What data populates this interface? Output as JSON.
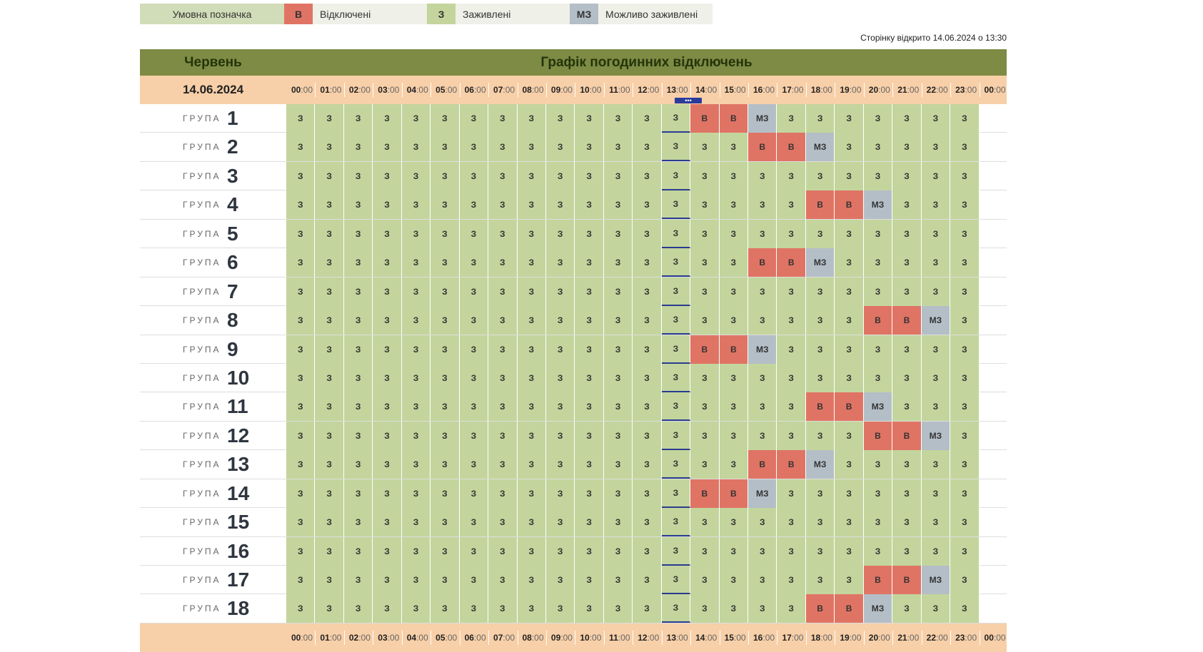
{
  "legend": {
    "title": "Умовна позначка",
    "items": [
      {
        "code": "В",
        "label": "Відключені",
        "color": "#e07464"
      },
      {
        "code": "З",
        "label": "Заживлені",
        "color": "#c3d59c"
      },
      {
        "code": "МЗ",
        "label": "Можливо заживлені",
        "color": "#b4bec7"
      }
    ]
  },
  "opened_text": "Сторінку відкрито 14.06.2024 о 13:30",
  "header": {
    "month": "Червень",
    "title": "Графік погодинних відключень",
    "date": "14.06.2024"
  },
  "hours": [
    {
      "hh": "00",
      "mm": ":00"
    },
    {
      "hh": "01",
      "mm": ":00"
    },
    {
      "hh": "02",
      "mm": ":00"
    },
    {
      "hh": "03",
      "mm": ":00"
    },
    {
      "hh": "04",
      "mm": ":00"
    },
    {
      "hh": "05",
      "mm": ":00"
    },
    {
      "hh": "06",
      "mm": ":00"
    },
    {
      "hh": "07",
      "mm": ":00"
    },
    {
      "hh": "08",
      "mm": ":00"
    },
    {
      "hh": "09",
      "mm": ":00"
    },
    {
      "hh": "10",
      "mm": ":00"
    },
    {
      "hh": "11",
      "mm": ":00"
    },
    {
      "hh": "12",
      "mm": ":00"
    },
    {
      "hh": "13",
      "mm": ":00"
    },
    {
      "hh": "14",
      "mm": ":00"
    },
    {
      "hh": "15",
      "mm": ":00"
    },
    {
      "hh": "16",
      "mm": ":00"
    },
    {
      "hh": "17",
      "mm": ":00"
    },
    {
      "hh": "18",
      "mm": ":00"
    },
    {
      "hh": "19",
      "mm": ":00"
    },
    {
      "hh": "20",
      "mm": ":00"
    },
    {
      "hh": "21",
      "mm": ":00"
    },
    {
      "hh": "22",
      "mm": ":00"
    },
    {
      "hh": "23",
      "mm": ":00"
    },
    {
      "hh": "00",
      "mm": ":00"
    }
  ],
  "current_hour_index": 13,
  "now_marker": "•••",
  "group_word": "ГРУПА",
  "codes": {
    "off": "В",
    "on": "З",
    "maybe": "МЗ"
  },
  "groups": [
    {
      "number": "1",
      "off": [
        14,
        15
      ],
      "maybe": [
        16
      ]
    },
    {
      "number": "2",
      "off": [
        16,
        17
      ],
      "maybe": [
        18
      ]
    },
    {
      "number": "3",
      "off": [],
      "maybe": []
    },
    {
      "number": "4",
      "off": [
        18,
        19
      ],
      "maybe": [
        20
      ]
    },
    {
      "number": "5",
      "off": [],
      "maybe": []
    },
    {
      "number": "6",
      "off": [
        16,
        17
      ],
      "maybe": [
        18
      ]
    },
    {
      "number": "7",
      "off": [],
      "maybe": []
    },
    {
      "number": "8",
      "off": [
        20,
        21
      ],
      "maybe": [
        22
      ]
    },
    {
      "number": "9",
      "off": [
        14,
        15
      ],
      "maybe": [
        16
      ]
    },
    {
      "number": "10",
      "off": [],
      "maybe": []
    },
    {
      "number": "11",
      "off": [
        18,
        19
      ],
      "maybe": [
        20
      ]
    },
    {
      "number": "12",
      "off": [
        20,
        21
      ],
      "maybe": [
        22
      ]
    },
    {
      "number": "13",
      "off": [
        16,
        17
      ],
      "maybe": [
        18
      ]
    },
    {
      "number": "14",
      "off": [
        14,
        15
      ],
      "maybe": [
        16
      ]
    },
    {
      "number": "15",
      "off": [],
      "maybe": []
    },
    {
      "number": "16",
      "off": [],
      "maybe": []
    },
    {
      "number": "17",
      "off": [
        20,
        21
      ],
      "maybe": [
        22
      ]
    },
    {
      "number": "18",
      "off": [
        18,
        19
      ],
      "maybe": [
        20
      ]
    }
  ]
}
